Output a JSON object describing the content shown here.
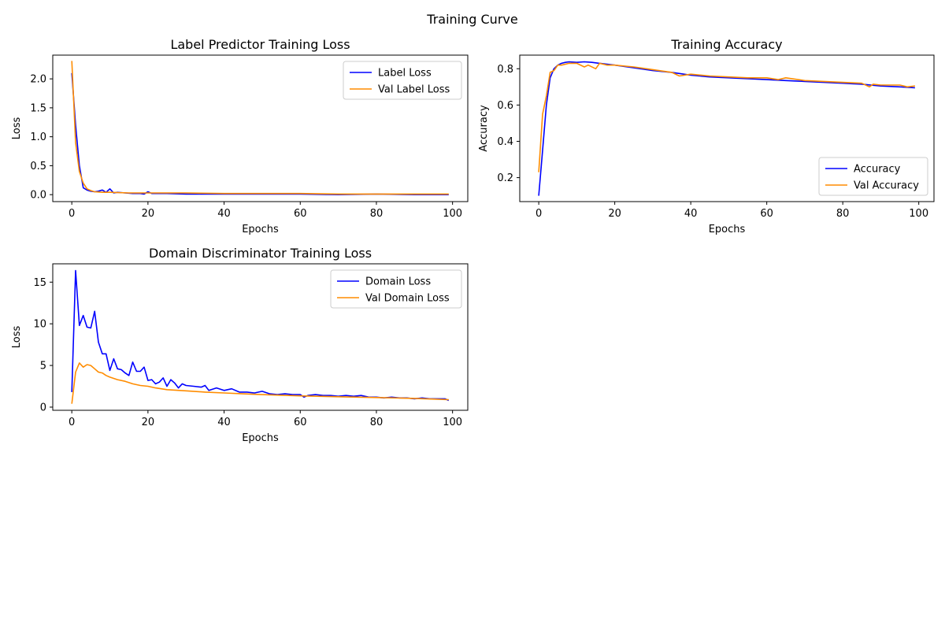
{
  "figure": {
    "title": "Training Curve"
  },
  "chart_data": [
    {
      "type": "line",
      "title": "Label Predictor Training Loss",
      "xlabel": "Epochs",
      "ylabel": "Loss",
      "xlim": [
        -5,
        104
      ],
      "ylim": [
        -0.12,
        2.41
      ],
      "xticks": [
        0,
        20,
        40,
        60,
        80,
        100
      ],
      "yticks": [
        0.0,
        0.5,
        1.0,
        1.5,
        2.0
      ],
      "ytick_decimals": 1,
      "grid": false,
      "legend": "top-right",
      "series": [
        {
          "name": "Label Loss",
          "color": "#0000ff",
          "x": [
            0,
            1,
            2,
            3,
            4,
            5,
            6,
            7,
            8,
            9,
            10,
            11,
            12,
            14,
            16,
            18,
            19,
            20,
            21,
            25,
            30,
            40,
            50,
            60,
            70,
            80,
            90,
            99
          ],
          "y": [
            2.1,
            1.2,
            0.5,
            0.12,
            0.08,
            0.06,
            0.05,
            0.06,
            0.08,
            0.04,
            0.1,
            0.03,
            0.04,
            0.03,
            0.02,
            0.02,
            0.01,
            0.05,
            0.02,
            0.02,
            0.01,
            0.01,
            0.01,
            0.01,
            0.0,
            0.01,
            0.0,
            0.0
          ]
        },
        {
          "name": "Val Label Loss",
          "color": "#ff8c00",
          "x": [
            0,
            1,
            2,
            3,
            4,
            5,
            6,
            8,
            10,
            15,
            20,
            30,
            40,
            50,
            60,
            70,
            80,
            90,
            99
          ],
          "y": [
            2.31,
            0.9,
            0.4,
            0.2,
            0.1,
            0.07,
            0.05,
            0.04,
            0.04,
            0.03,
            0.03,
            0.03,
            0.02,
            0.02,
            0.02,
            0.01,
            0.01,
            0.01,
            0.01
          ]
        }
      ]
    },
    {
      "type": "line",
      "title": "Training Accuracy",
      "xlabel": "Epochs",
      "ylabel": "Accuracy",
      "xlim": [
        -5,
        104
      ],
      "ylim": [
        0.068,
        0.875
      ],
      "xticks": [
        0,
        20,
        40,
        60,
        80,
        100
      ],
      "yticks": [
        0.2,
        0.4,
        0.6,
        0.8
      ],
      "ytick_decimals": 1,
      "grid": false,
      "legend": "bottom-right",
      "series": [
        {
          "name": "Accuracy",
          "color": "#0000ff",
          "x": [
            0,
            1,
            2,
            3,
            4,
            5,
            6,
            7,
            8,
            10,
            12,
            14,
            16,
            18,
            20,
            25,
            30,
            35,
            40,
            45,
            50,
            55,
            60,
            65,
            70,
            75,
            80,
            85,
            90,
            95,
            99
          ],
          "y": [
            0.1,
            0.35,
            0.6,
            0.75,
            0.8,
            0.82,
            0.83,
            0.835,
            0.838,
            0.835,
            0.838,
            0.835,
            0.83,
            0.825,
            0.82,
            0.805,
            0.79,
            0.78,
            0.765,
            0.755,
            0.75,
            0.745,
            0.74,
            0.735,
            0.73,
            0.725,
            0.72,
            0.715,
            0.705,
            0.7,
            0.695
          ]
        },
        {
          "name": "Val Accuracy",
          "color": "#ff8c00",
          "x": [
            0,
            1,
            2,
            3,
            4,
            5,
            6,
            8,
            10,
            12,
            13,
            15,
            16,
            18,
            20,
            25,
            30,
            35,
            37,
            40,
            45,
            50,
            55,
            60,
            63,
            65,
            70,
            75,
            80,
            85,
            87,
            88,
            90,
            95,
            97,
            99
          ],
          "y": [
            0.23,
            0.55,
            0.65,
            0.78,
            0.79,
            0.82,
            0.82,
            0.83,
            0.83,
            0.81,
            0.82,
            0.8,
            0.83,
            0.82,
            0.82,
            0.81,
            0.795,
            0.78,
            0.76,
            0.77,
            0.76,
            0.755,
            0.75,
            0.75,
            0.74,
            0.75,
            0.735,
            0.73,
            0.725,
            0.72,
            0.7,
            0.715,
            0.71,
            0.71,
            0.7,
            0.705
          ]
        }
      ]
    },
    {
      "type": "line",
      "title": "Domain Discriminator Training Loss",
      "xlabel": "Epochs",
      "ylabel": "Loss",
      "xlim": [
        -5,
        104
      ],
      "ylim": [
        -0.38,
        17.2
      ],
      "xticks": [
        0,
        20,
        40,
        60,
        80,
        100
      ],
      "yticks": [
        0,
        5,
        10,
        15
      ],
      "ytick_decimals": 0,
      "grid": false,
      "legend": "top-right",
      "series": [
        {
          "name": "Domain Loss",
          "color": "#0000ff",
          "x": [
            0,
            1,
            2,
            3,
            4,
            5,
            6,
            7,
            8,
            9,
            10,
            11,
            12,
            13,
            14,
            15,
            16,
            17,
            18,
            19,
            20,
            21,
            22,
            23,
            24,
            25,
            26,
            27,
            28,
            29,
            30,
            32,
            34,
            35,
            36,
            38,
            40,
            42,
            44,
            46,
            48,
            50,
            52,
            54,
            56,
            58,
            60,
            61,
            62,
            64,
            66,
            68,
            70,
            72,
            74,
            76,
            78,
            80,
            82,
            84,
            86,
            88,
            90,
            92,
            94,
            96,
            98,
            99
          ],
          "y": [
            1.8,
            16.4,
            9.8,
            11.0,
            9.6,
            9.5,
            11.5,
            7.8,
            6.4,
            6.4,
            4.4,
            5.8,
            4.6,
            4.5,
            4.1,
            3.8,
            5.4,
            4.3,
            4.3,
            4.8,
            3.2,
            3.3,
            2.8,
            3.0,
            3.5,
            2.5,
            3.3,
            2.9,
            2.3,
            2.8,
            2.6,
            2.5,
            2.4,
            2.6,
            2.0,
            2.3,
            2.0,
            2.2,
            1.8,
            1.8,
            1.7,
            1.9,
            1.6,
            1.5,
            1.6,
            1.5,
            1.5,
            1.2,
            1.4,
            1.5,
            1.4,
            1.4,
            1.3,
            1.4,
            1.3,
            1.4,
            1.2,
            1.2,
            1.1,
            1.2,
            1.1,
            1.1,
            1.0,
            1.1,
            1.0,
            1.0,
            1.0,
            0.8
          ]
        },
        {
          "name": "Val Domain Loss",
          "color": "#ff8c00",
          "x": [
            0,
            1,
            2,
            3,
            4,
            5,
            6,
            7,
            8,
            9,
            10,
            12,
            14,
            16,
            18,
            20,
            22,
            25,
            30,
            35,
            40,
            45,
            50,
            60,
            70,
            80,
            90,
            99
          ],
          "y": [
            0.4,
            4.2,
            5.3,
            4.8,
            5.1,
            5.0,
            4.6,
            4.2,
            4.1,
            3.8,
            3.6,
            3.3,
            3.1,
            2.8,
            2.6,
            2.5,
            2.3,
            2.1,
            1.95,
            1.8,
            1.7,
            1.6,
            1.5,
            1.35,
            1.25,
            1.15,
            1.05,
            0.9
          ]
        }
      ]
    }
  ]
}
